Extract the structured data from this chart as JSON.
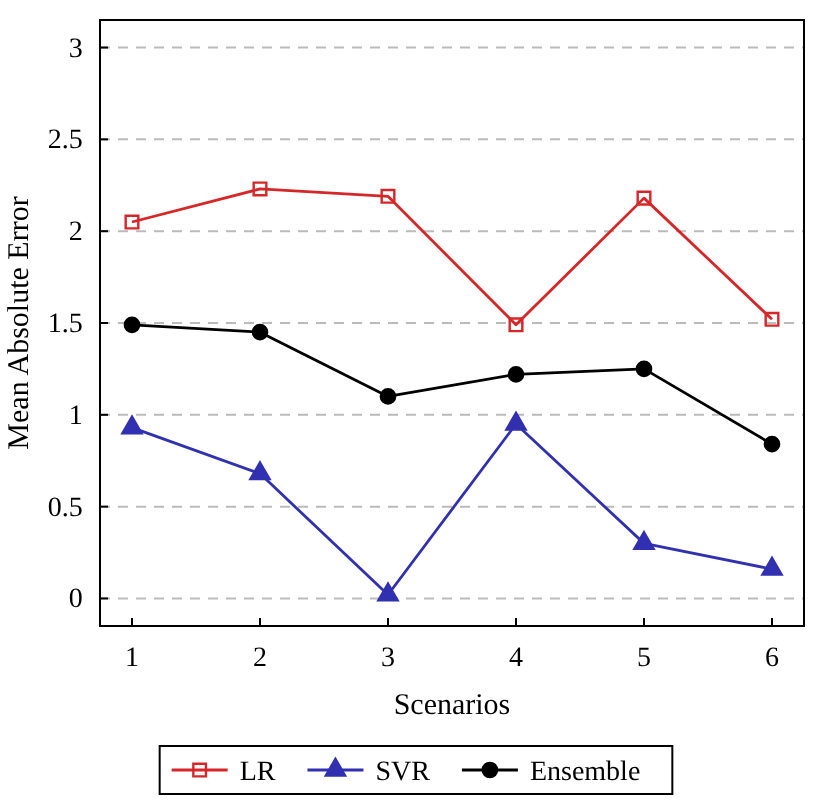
{
  "chart_data": {
    "type": "line",
    "xlabel": "Scenarios",
    "ylabel": "Mean Absolute Error",
    "x": [
      1,
      2,
      3,
      4,
      5,
      6
    ],
    "series": [
      {
        "name": "LR",
        "color": "#d62728",
        "marker": "square",
        "values": [
          2.05,
          2.23,
          2.19,
          1.49,
          2.18,
          1.52
        ]
      },
      {
        "name": "SVR",
        "color": "#3030b0",
        "marker": "triangle",
        "values": [
          0.93,
          0.68,
          0.02,
          0.95,
          0.3,
          0.16
        ]
      },
      {
        "name": "Ensemble",
        "color": "#000000",
        "marker": "circle",
        "values": [
          1.49,
          1.45,
          1.1,
          1.22,
          1.25,
          0.84
        ]
      }
    ],
    "xlim": [
      0.75,
      6.25
    ],
    "xticks": [
      1,
      2,
      3,
      4,
      5,
      6
    ],
    "ylim": [
      -0.15,
      3.15
    ],
    "yticks": [
      0,
      0.5,
      1,
      1.5,
      2,
      2.5,
      3
    ],
    "grid": "y",
    "legend": "bottom"
  }
}
